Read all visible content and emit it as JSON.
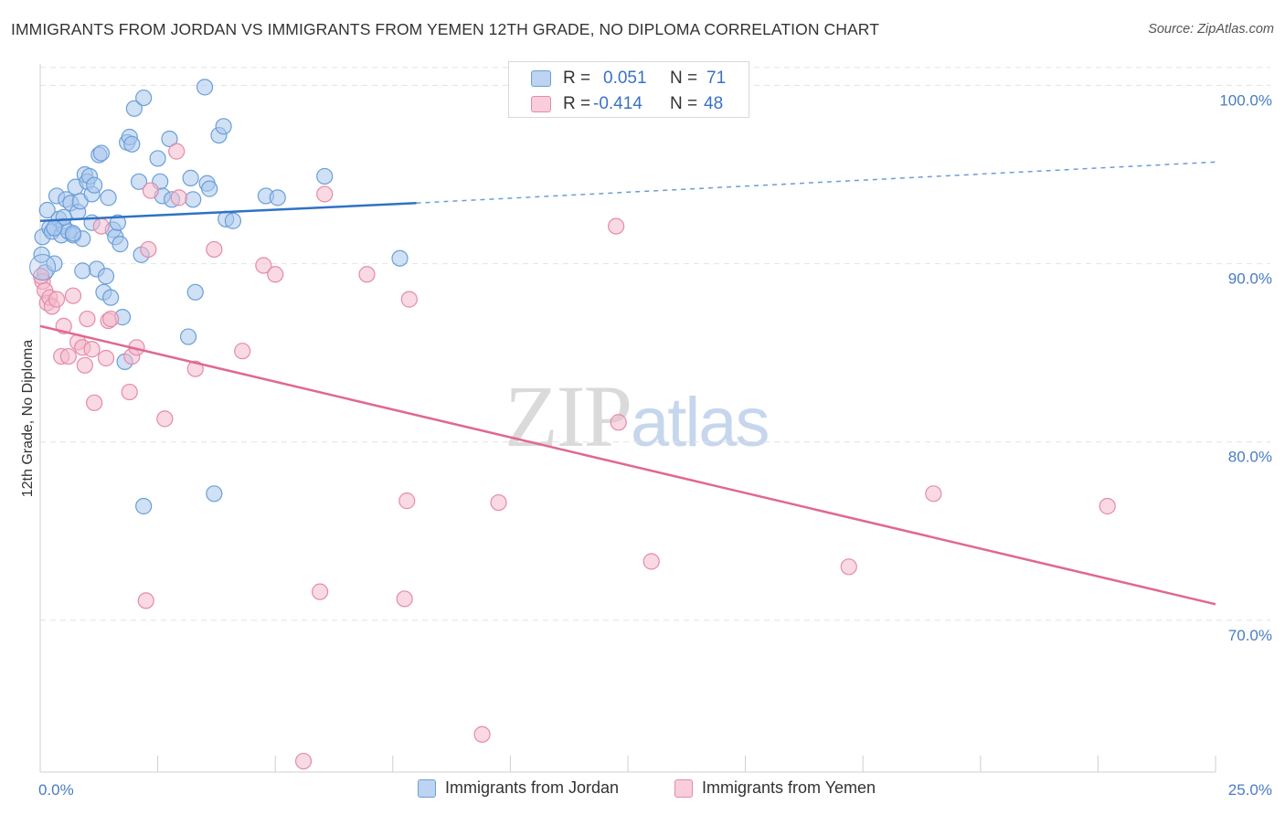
{
  "header": {
    "title": "IMMIGRANTS FROM JORDAN VS IMMIGRANTS FROM YEMEN 12TH GRADE, NO DIPLOMA CORRELATION CHART",
    "source": "Source: ZipAtlas.com"
  },
  "watermark": {
    "zip": "ZIP",
    "atlas": "atlas"
  },
  "legend": {
    "rows": [
      {
        "r_label": "R =",
        "r_value": "0.051",
        "n_label": "N =",
        "n_value": "71"
      },
      {
        "r_label": "R =",
        "r_value": "-0.414",
        "n_label": "N =",
        "n_value": "48"
      }
    ]
  },
  "bottom_legend": {
    "jordan": "Immigrants from Jordan",
    "yemen": "Immigrants from Yemen"
  },
  "colors": {
    "jordan_fill": "#a9c6ec",
    "jordan_stroke": "#6b9fd8",
    "jordan_line": "#2e72c6",
    "yemen_fill": "#f4b9cc",
    "yemen_stroke": "#e58ba8",
    "yemen_line": "#e0688f",
    "tick_text": "#4a7cc4",
    "grid": "#e2e2e2"
  },
  "chart_data": {
    "type": "scatter",
    "title": "IMMIGRANTS FROM JORDAN VS IMMIGRANTS FROM YEMEN 12TH GRADE, NO DIPLOMA CORRELATION CHART",
    "xlabel": "",
    "ylabel": "12th Grade, No Diploma",
    "xlim": [
      0,
      25
    ],
    "ylim": [
      60,
      102
    ],
    "x_ticks": [
      0,
      2.5,
      5,
      7.5,
      10,
      12.5,
      15,
      17.5,
      20,
      22.5,
      25
    ],
    "x_tick_labels": {
      "0": "0.0%",
      "25": "25.0%"
    },
    "y_ticks": [
      70,
      80,
      90,
      100
    ],
    "y_tick_labels": [
      "70.0%",
      "80.0%",
      "90.0%",
      "100.0%"
    ],
    "grid": true,
    "legend_position": "top-center",
    "series": [
      {
        "name": "Immigrants from Jordan",
        "R": 0.051,
        "N": 71,
        "trend": {
          "x0": 0,
          "y0": 92.4,
          "x1": 8,
          "y1": 93.4,
          "dashed_to_x": 25,
          "dashed_to_y": 95.7
        },
        "points": [
          [
            0.03,
            90.5
          ],
          [
            0.05,
            91.5
          ],
          [
            0.1,
            89.5
          ],
          [
            0.15,
            93.0
          ],
          [
            0.2,
            92.0
          ],
          [
            0.25,
            91.8
          ],
          [
            0.3,
            90.0
          ],
          [
            0.35,
            93.8
          ],
          [
            0.4,
            92.5
          ],
          [
            0.45,
            91.6
          ],
          [
            0.5,
            92.1
          ],
          [
            0.55,
            93.6
          ],
          [
            0.6,
            91.8
          ],
          [
            0.65,
            93.4
          ],
          [
            0.7,
            91.6
          ],
          [
            0.75,
            94.3
          ],
          [
            0.8,
            92.9
          ],
          [
            0.85,
            93.5
          ],
          [
            0.9,
            91.4
          ],
          [
            0.95,
            95.0
          ],
          [
            1.0,
            94.6
          ],
          [
            1.05,
            94.9
          ],
          [
            1.1,
            93.9
          ],
          [
            1.15,
            94.4
          ],
          [
            1.2,
            89.7
          ],
          [
            1.25,
            96.1
          ],
          [
            1.3,
            96.2
          ],
          [
            1.35,
            88.4
          ],
          [
            1.4,
            89.3
          ],
          [
            1.45,
            93.7
          ],
          [
            1.5,
            88.1
          ],
          [
            1.55,
            91.9
          ],
          [
            1.6,
            91.5
          ],
          [
            1.65,
            92.3
          ],
          [
            1.7,
            91.1
          ],
          [
            1.75,
            87.0
          ],
          [
            1.8,
            84.5
          ],
          [
            1.85,
            96.8
          ],
          [
            1.9,
            97.1
          ],
          [
            1.95,
            96.7
          ],
          [
            2.0,
            98.7
          ],
          [
            2.1,
            94.6
          ],
          [
            2.15,
            90.5
          ],
          [
            2.2,
            99.3
          ],
          [
            2.5,
            95.9
          ],
          [
            2.55,
            94.6
          ],
          [
            2.6,
            93.8
          ],
          [
            2.75,
            97.0
          ],
          [
            2.8,
            93.6
          ],
          [
            3.15,
            85.9
          ],
          [
            3.2,
            94.8
          ],
          [
            3.25,
            93.6
          ],
          [
            3.3,
            88.4
          ],
          [
            3.5,
            99.9
          ],
          [
            3.55,
            94.5
          ],
          [
            3.6,
            94.2
          ],
          [
            3.7,
            77.1
          ],
          [
            3.8,
            97.2
          ],
          [
            3.9,
            97.7
          ],
          [
            3.95,
            92.5
          ],
          [
            4.1,
            92.4
          ],
          [
            4.8,
            93.8
          ],
          [
            5.05,
            93.7
          ],
          [
            6.05,
            94.9
          ],
          [
            7.65,
            90.3
          ],
          [
            0.9,
            89.6
          ],
          [
            1.1,
            92.3
          ],
          [
            2.2,
            76.4
          ],
          [
            0.5,
            92.6
          ],
          [
            0.7,
            91.7
          ],
          [
            0.3,
            92.0
          ]
        ]
      },
      {
        "name": "Immigrants from Yemen",
        "R": -0.414,
        "N": 48,
        "trend": {
          "x0": 0,
          "y0": 86.5,
          "x1": 25,
          "y1": 70.9
        },
        "points": [
          [
            0.05,
            89.0
          ],
          [
            0.1,
            88.5
          ],
          [
            0.15,
            87.8
          ],
          [
            0.2,
            88.1
          ],
          [
            0.25,
            87.6
          ],
          [
            0.35,
            88.0
          ],
          [
            0.45,
            84.8
          ],
          [
            0.5,
            86.5
          ],
          [
            0.6,
            84.8
          ],
          [
            0.7,
            88.2
          ],
          [
            0.8,
            85.6
          ],
          [
            0.9,
            85.3
          ],
          [
            0.95,
            84.3
          ],
          [
            1.0,
            86.9
          ],
          [
            1.1,
            85.2
          ],
          [
            1.15,
            82.2
          ],
          [
            1.3,
            92.1
          ],
          [
            1.4,
            84.7
          ],
          [
            1.45,
            86.8
          ],
          [
            1.5,
            86.9
          ],
          [
            1.9,
            82.8
          ],
          [
            1.95,
            84.8
          ],
          [
            2.05,
            85.3
          ],
          [
            2.25,
            71.1
          ],
          [
            2.3,
            90.8
          ],
          [
            2.35,
            94.1
          ],
          [
            2.65,
            81.3
          ],
          [
            2.9,
            96.3
          ],
          [
            2.95,
            93.7
          ],
          [
            3.3,
            84.1
          ],
          [
            3.7,
            90.8
          ],
          [
            4.3,
            85.1
          ],
          [
            4.75,
            89.9
          ],
          [
            5.0,
            89.4
          ],
          [
            5.6,
            62.1
          ],
          [
            5.95,
            71.6
          ],
          [
            6.05,
            93.9
          ],
          [
            6.95,
            89.4
          ],
          [
            7.75,
            71.2
          ],
          [
            7.8,
            76.7
          ],
          [
            7.85,
            88.0
          ],
          [
            9.4,
            63.6
          ],
          [
            9.75,
            76.6
          ],
          [
            12.3,
            81.1
          ],
          [
            12.25,
            92.1
          ],
          [
            13.0,
            73.3
          ],
          [
            17.2,
            73.0
          ],
          [
            19.0,
            77.1
          ]
        ]
      }
    ],
    "extra_points": [
      [
        22.7,
        76.4
      ],
      [
        0.02,
        89.3
      ]
    ]
  }
}
